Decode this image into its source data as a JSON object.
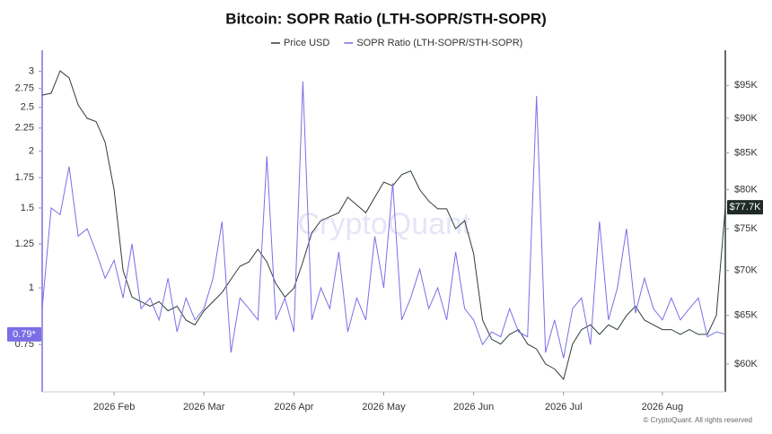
{
  "chart_data": {
    "type": "line",
    "title": "Bitcoin: SOPR Ratio (LTH-SOPR/STH-SOPR)",
    "watermark": "CryptoQuant",
    "credit": "© CryptoQuant. All rights reserved",
    "categories": [
      null,
      null,
      null,
      null,
      null,
      null,
      null,
      null,
      "2026 Feb",
      null,
      null,
      null,
      null,
      null,
      null,
      null,
      null,
      null,
      "2026 Mar",
      null,
      null,
      null,
      null,
      null,
      null,
      null,
      null,
      null,
      "2026 Apr",
      null,
      null,
      null,
      null,
      null,
      null,
      null,
      null,
      null,
      "2026 May",
      null,
      null,
      null,
      null,
      null,
      null,
      null,
      null,
      null,
      "2026 Jun",
      null,
      null,
      null,
      null,
      null,
      null,
      null,
      null,
      null,
      "2026 Jul",
      null,
      null,
      null,
      null,
      null,
      null,
      null,
      null,
      null,
      null,
      "2026 Aug",
      null,
      null,
      null,
      null,
      null,
      null,
      null
    ],
    "series": [
      {
        "name": "Price USD",
        "color": "#2e3d38",
        "axis": "y2",
        "values": [
          93500,
          93800,
          97300,
          96200,
          92000,
          90000,
          89500,
          86500,
          80000,
          70000,
          67000,
          66500,
          66000,
          66500,
          65500,
          66000,
          64500,
          64000,
          65500,
          66500,
          67500,
          69000,
          70500,
          71000,
          72500,
          71000,
          68500,
          67000,
          68000,
          71000,
          74500,
          76000,
          76500,
          77000,
          79000,
          78000,
          77000,
          79000,
          81000,
          80500,
          82000,
          82500,
          80000,
          78500,
          77500,
          77500,
          75000,
          76000,
          72000,
          64500,
          62500,
          62000,
          63000,
          63500,
          62000,
          61500,
          60000,
          59500,
          58500,
          62000,
          63500,
          64000,
          63000,
          64000,
          63500,
          65000,
          66000,
          64500,
          64000,
          63500,
          63500,
          63000,
          63500,
          63000,
          63000,
          65000,
          77700
        ],
        "value_labels": [
          null,
          null,
          null,
          null,
          null,
          null,
          null,
          null,
          null,
          null,
          null,
          null,
          null,
          null,
          null,
          null,
          null,
          null,
          null,
          null,
          null,
          null,
          null,
          null,
          null,
          null,
          null,
          null,
          null,
          null,
          null,
          null,
          null,
          null,
          null,
          null,
          null,
          null,
          null,
          null,
          null,
          null,
          null,
          null,
          null,
          null,
          null,
          null,
          null,
          null,
          null,
          null,
          null,
          null,
          null,
          null,
          null,
          null,
          null,
          null,
          null,
          null,
          null,
          null,
          null,
          null,
          null,
          null,
          null,
          null,
          null,
          null,
          null,
          null,
          null,
          null,
          "$77.7K"
        ]
      },
      {
        "name": "SOPR Ratio (LTH-SOPR/STH-SOPR)",
        "color": "#7b6ee6",
        "values": [
          0.9,
          1.5,
          1.45,
          1.85,
          1.3,
          1.35,
          1.2,
          1.05,
          1.15,
          0.95,
          1.25,
          0.9,
          0.95,
          0.85,
          1.05,
          0.8,
          0.95,
          0.85,
          0.9,
          1.05,
          1.4,
          0.72,
          0.95,
          0.9,
          0.85,
          1.95,
          0.85,
          0.95,
          0.8,
          2.85,
          0.85,
          1.0,
          0.9,
          1.2,
          0.8,
          0.95,
          0.85,
          1.3,
          1.0,
          1.7,
          0.85,
          0.95,
          1.1,
          0.9,
          1.0,
          0.85,
          1.2,
          0.9,
          0.85,
          0.75,
          0.8,
          0.78,
          0.9,
          0.8,
          0.78,
          2.65,
          0.72,
          0.85,
          0.7,
          0.9,
          0.95,
          0.75,
          1.4,
          0.85,
          1.0,
          1.35,
          0.88,
          1.05,
          0.9,
          0.85,
          0.95,
          0.85,
          0.9,
          0.95,
          0.78,
          0.8,
          0.79
        ],
        "value_labels": [
          null,
          null,
          null,
          null,
          null,
          null,
          null,
          null,
          null,
          null,
          null,
          null,
          null,
          null,
          null,
          null,
          null,
          null,
          null,
          null,
          null,
          null,
          null,
          null,
          null,
          null,
          null,
          null,
          null,
          null,
          null,
          null,
          null,
          null,
          null,
          null,
          null,
          null,
          null,
          null,
          null,
          null,
          null,
          null,
          null,
          null,
          null,
          null,
          null,
          null,
          null,
          null,
          null,
          null,
          null,
          null,
          null,
          null,
          null,
          null,
          null,
          null,
          null,
          null,
          null,
          null,
          null,
          null,
          null,
          null,
          null,
          null,
          null,
          null,
          null,
          null,
          "0.79*"
        ]
      }
    ],
    "ylog": true,
    "ylim": [
      0.59,
      3.25
    ],
    "yticks": [
      0.75,
      1,
      1.25,
      1.5,
      1.75,
      2,
      2.25,
      2.5,
      2.75,
      3
    ],
    "y2log": true,
    "y2lim": [
      57300,
      99800
    ],
    "y2ticks": [
      {
        "value": 60000,
        "label": "$60K"
      },
      {
        "value": 65000,
        "label": "$65K"
      },
      {
        "value": 70000,
        "label": "$70K"
      },
      {
        "value": 75000,
        "label": "$75K"
      },
      {
        "value": 80000,
        "label": "$80K"
      },
      {
        "value": 85000,
        "label": "$85K"
      },
      {
        "value": 90000,
        "label": "$90K"
      },
      {
        "value": 95000,
        "label": "$95K"
      }
    ]
  }
}
